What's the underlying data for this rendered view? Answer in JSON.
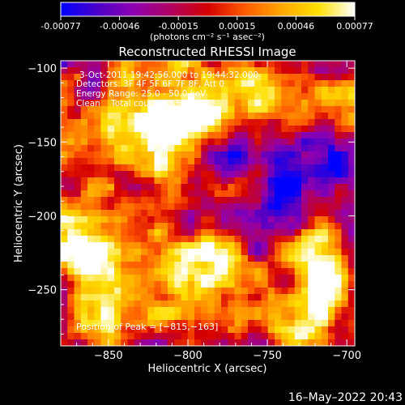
{
  "colorbar": {
    "ticks": [
      "-0.00077",
      "-0.00046",
      "-0.00015",
      "0.00015",
      "0.00046",
      "0.00077"
    ],
    "unit_label": "(photons cm⁻² s⁻¹ asec⁻²)",
    "colors": [
      "#0000ff",
      "#4b00c8",
      "#9000b0",
      "#b00060",
      "#d40000",
      "#ff5a00",
      "#ffa600",
      "#ffe000",
      "#ffffff"
    ]
  },
  "chart_data": {
    "type": "heatmap",
    "title": "Reconstructed RHESSI Image",
    "xlabel": "Heliocentric X (arcsec)",
    "ylabel": "Heliocentric Y (arcsec)",
    "xlim": [
      -880,
      -695
    ],
    "ylim": [
      -288,
      -95
    ],
    "x_ticks": [
      -850,
      -800,
      -750,
      -700
    ],
    "y_ticks": [
      -100,
      -150,
      -200,
      -250
    ],
    "x_tick_labels": [
      "−850",
      "−800",
      "−750",
      "−700"
    ],
    "y_tick_labels": [
      "−100",
      "−150",
      "−200",
      "−250"
    ],
    "colormap_range": [
      -0.00077,
      0.00077
    ],
    "peak_position": [
      -815,
      -163
    ],
    "annotations": [
      "3-Oct-2011 19:42:56.000 to 19:44:32.000",
      "Detectors: 3F 4F 5F 6F 7F 8F, Att 0",
      "Energy Range: 25.0 - 50.0 keV",
      "Clean    Total counts: 3.56E+03"
    ],
    "peak_label": "Position of Peak = [−815,−163]"
  },
  "footer": {
    "timestamp": "16–May–2022 20:43"
  }
}
